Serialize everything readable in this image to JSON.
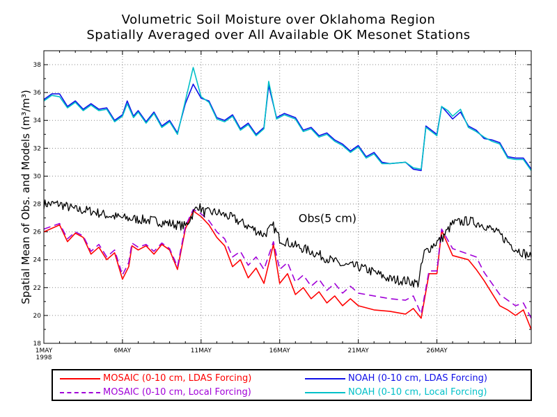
{
  "title": {
    "line1": "Volumetric Soil Moisture over Oklahoma Region",
    "line2": "Spatially Averaged over All Available OK Mesonet Stations"
  },
  "chart_data": {
    "type": "line",
    "ylabel": "Spatial Mean of Obs. and Models (m³/m³)",
    "ylim": [
      18,
      39
    ],
    "yticks": [
      18,
      20,
      22,
      24,
      26,
      28,
      30,
      32,
      34,
      36,
      38
    ],
    "xlim": [
      1,
      32
    ],
    "xticks": [
      {
        "day": 1,
        "label": "1MAY",
        "sublabel": "1998"
      },
      {
        "day": 6,
        "label": "6MAY"
      },
      {
        "day": 11,
        "label": "11MAY"
      },
      {
        "day": 16,
        "label": "16MAY"
      },
      {
        "day": 21,
        "label": "21MAY"
      },
      {
        "day": 26,
        "label": "26MAY"
      }
    ],
    "grid": true,
    "annotation": {
      "text": "Obs(5 cm)",
      "x": 17.2,
      "y": 26.7
    },
    "series": [
      {
        "name": "MOSAIC (0-10 cm, LDAS Forcing)",
        "color": "#ff0000",
        "dash": false,
        "noise": 0,
        "points": [
          [
            1,
            26.0
          ],
          [
            2,
            26.5
          ],
          [
            2.5,
            25.3
          ],
          [
            3,
            25.9
          ],
          [
            3.5,
            25.6
          ],
          [
            4,
            24.4
          ],
          [
            4.5,
            24.9
          ],
          [
            5,
            24.0
          ],
          [
            5.5,
            24.5
          ],
          [
            6,
            22.6
          ],
          [
            6.4,
            23.5
          ],
          [
            6.6,
            25.0
          ],
          [
            7,
            24.7
          ],
          [
            7.5,
            25.0
          ],
          [
            8,
            24.4
          ],
          [
            8.5,
            25.1
          ],
          [
            9,
            24.7
          ],
          [
            9.5,
            23.3
          ],
          [
            10,
            26.2
          ],
          [
            10.5,
            27.5
          ],
          [
            11,
            27.1
          ],
          [
            11.5,
            26.5
          ],
          [
            12,
            25.6
          ],
          [
            12.5,
            25.0
          ],
          [
            13,
            23.5
          ],
          [
            13.5,
            24.0
          ],
          [
            14,
            22.7
          ],
          [
            14.5,
            23.4
          ],
          [
            15,
            22.3
          ],
          [
            15.6,
            25.1
          ],
          [
            16,
            22.3
          ],
          [
            16.5,
            23.0
          ],
          [
            17,
            21.5
          ],
          [
            17.5,
            22.0
          ],
          [
            18,
            21.2
          ],
          [
            18.5,
            21.7
          ],
          [
            19,
            20.9
          ],
          [
            19.5,
            21.4
          ],
          [
            20,
            20.7
          ],
          [
            20.5,
            21.2
          ],
          [
            21,
            20.7
          ],
          [
            22,
            20.4
          ],
          [
            23,
            20.3
          ],
          [
            24,
            20.1
          ],
          [
            24.5,
            20.5
          ],
          [
            25,
            19.8
          ],
          [
            25.5,
            23.0
          ],
          [
            26,
            23.0
          ],
          [
            26.3,
            26.1
          ],
          [
            27,
            24.3
          ],
          [
            28,
            24.0
          ],
          [
            28.5,
            23.3
          ],
          [
            29,
            22.5
          ],
          [
            30,
            20.7
          ],
          [
            30.5,
            20.4
          ],
          [
            31,
            20.0
          ],
          [
            31.5,
            20.4
          ],
          [
            32,
            19.0
          ]
        ]
      },
      {
        "name": "MOSAIC (0-10 cm, Local Forcing)",
        "color": "#a000d8",
        "dash": true,
        "noise": 0,
        "points": [
          [
            1,
            26.2
          ],
          [
            2,
            26.6
          ],
          [
            2.5,
            25.5
          ],
          [
            3,
            26.0
          ],
          [
            3.5,
            25.7
          ],
          [
            4,
            24.6
          ],
          [
            4.5,
            25.1
          ],
          [
            5,
            24.2
          ],
          [
            5.5,
            24.7
          ],
          [
            6,
            22.9
          ],
          [
            6.4,
            23.8
          ],
          [
            6.6,
            25.2
          ],
          [
            7,
            24.9
          ],
          [
            7.5,
            25.1
          ],
          [
            8,
            24.6
          ],
          [
            8.5,
            25.2
          ],
          [
            9,
            24.8
          ],
          [
            9.5,
            23.5
          ],
          [
            10,
            26.4
          ],
          [
            10.5,
            27.6
          ],
          [
            11,
            27.3
          ],
          [
            11.5,
            26.8
          ],
          [
            12,
            26.0
          ],
          [
            12.5,
            25.5
          ],
          [
            13,
            24.2
          ],
          [
            13.5,
            24.6
          ],
          [
            14,
            23.6
          ],
          [
            14.5,
            24.2
          ],
          [
            15,
            23.3
          ],
          [
            15.6,
            25.3
          ],
          [
            16,
            23.3
          ],
          [
            16.5,
            23.8
          ],
          [
            17,
            22.4
          ],
          [
            17.5,
            22.9
          ],
          [
            18,
            22.1
          ],
          [
            18.5,
            22.6
          ],
          [
            19,
            21.8
          ],
          [
            19.5,
            22.3
          ],
          [
            20,
            21.6
          ],
          [
            20.5,
            22.1
          ],
          [
            21,
            21.6
          ],
          [
            22,
            21.4
          ],
          [
            23,
            21.2
          ],
          [
            24,
            21.1
          ],
          [
            24.5,
            21.4
          ],
          [
            25,
            20.1
          ],
          [
            25.5,
            23.2
          ],
          [
            26,
            23.2
          ],
          [
            26.3,
            26.2
          ],
          [
            27,
            24.8
          ],
          [
            28,
            24.4
          ],
          [
            28.5,
            24.2
          ],
          [
            29,
            23.1
          ],
          [
            30,
            21.5
          ],
          [
            30.5,
            21.1
          ],
          [
            31,
            20.7
          ],
          [
            31.5,
            20.9
          ],
          [
            32,
            19.8
          ]
        ]
      },
      {
        "name": "NOAH (0-10 cm, LDAS Forcing)",
        "color": "#1010e8",
        "dash": false,
        "noise": 0,
        "points": [
          [
            1,
            35.5
          ],
          [
            1.5,
            35.9
          ],
          [
            2,
            35.9
          ],
          [
            2.5,
            35.0
          ],
          [
            3,
            35.4
          ],
          [
            3.5,
            34.8
          ],
          [
            4,
            35.2
          ],
          [
            4.5,
            34.8
          ],
          [
            5,
            34.9
          ],
          [
            5.5,
            34.0
          ],
          [
            6,
            34.4
          ],
          [
            6.3,
            35.4
          ],
          [
            6.7,
            34.3
          ],
          [
            7,
            34.7
          ],
          [
            7.5,
            33.9
          ],
          [
            8,
            34.6
          ],
          [
            8.5,
            33.6
          ],
          [
            9,
            34.0
          ],
          [
            9.5,
            33.1
          ],
          [
            10,
            35.2
          ],
          [
            10.5,
            36.6
          ],
          [
            11,
            35.6
          ],
          [
            11.5,
            35.4
          ],
          [
            12,
            34.2
          ],
          [
            12.5,
            34.0
          ],
          [
            13,
            34.4
          ],
          [
            13.5,
            33.4
          ],
          [
            14,
            33.8
          ],
          [
            14.5,
            33.0
          ],
          [
            15,
            33.5
          ],
          [
            15.3,
            36.5
          ],
          [
            15.8,
            34.2
          ],
          [
            16.3,
            34.5
          ],
          [
            17,
            34.2
          ],
          [
            17.5,
            33.3
          ],
          [
            18,
            33.5
          ],
          [
            18.5,
            32.9
          ],
          [
            19,
            33.1
          ],
          [
            19.5,
            32.6
          ],
          [
            20,
            32.3
          ],
          [
            20.5,
            31.8
          ],
          [
            21,
            32.2
          ],
          [
            21.5,
            31.4
          ],
          [
            22,
            31.7
          ],
          [
            22.5,
            31.0
          ],
          [
            23,
            30.9
          ],
          [
            24,
            31.0
          ],
          [
            24.5,
            30.5
          ],
          [
            25,
            30.4
          ],
          [
            25.3,
            33.6
          ],
          [
            26,
            33.0
          ],
          [
            26.3,
            35.0
          ],
          [
            26.7,
            34.5
          ],
          [
            27,
            34.1
          ],
          [
            27.5,
            34.6
          ],
          [
            28,
            33.6
          ],
          [
            28.5,
            33.3
          ],
          [
            29,
            32.7
          ],
          [
            29.5,
            32.6
          ],
          [
            30,
            32.4
          ],
          [
            30.5,
            31.4
          ],
          [
            31,
            31.3
          ],
          [
            31.5,
            31.3
          ],
          [
            32,
            30.5
          ]
        ]
      },
      {
        "name": "NOAH (0-10 cm, Local Forcing)",
        "color": "#00c0c8",
        "dash": false,
        "noise": 0,
        "points": [
          [
            1,
            35.4
          ],
          [
            1.5,
            35.8
          ],
          [
            2,
            35.7
          ],
          [
            2.5,
            34.9
          ],
          [
            3,
            35.3
          ],
          [
            3.5,
            34.7
          ],
          [
            4,
            35.1
          ],
          [
            4.5,
            34.7
          ],
          [
            5,
            34.8
          ],
          [
            5.5,
            33.9
          ],
          [
            6,
            34.3
          ],
          [
            6.3,
            35.2
          ],
          [
            6.7,
            34.2
          ],
          [
            7,
            34.6
          ],
          [
            7.5,
            33.8
          ],
          [
            8,
            34.5
          ],
          [
            8.5,
            33.5
          ],
          [
            9,
            33.9
          ],
          [
            9.5,
            33.0
          ],
          [
            10,
            35.4
          ],
          [
            10.5,
            37.8
          ],
          [
            11,
            35.7
          ],
          [
            11.5,
            35.3
          ],
          [
            12,
            34.1
          ],
          [
            12.5,
            33.9
          ],
          [
            13,
            34.3
          ],
          [
            13.5,
            33.3
          ],
          [
            14,
            33.7
          ],
          [
            14.5,
            32.9
          ],
          [
            15,
            33.4
          ],
          [
            15.3,
            36.8
          ],
          [
            15.8,
            34.1
          ],
          [
            16.3,
            34.4
          ],
          [
            17,
            34.1
          ],
          [
            17.5,
            33.2
          ],
          [
            18,
            33.4
          ],
          [
            18.5,
            32.8
          ],
          [
            19,
            33.0
          ],
          [
            19.5,
            32.5
          ],
          [
            20,
            32.2
          ],
          [
            20.5,
            31.7
          ],
          [
            21,
            32.1
          ],
          [
            21.5,
            31.3
          ],
          [
            22,
            31.6
          ],
          [
            22.5,
            30.9
          ],
          [
            23,
            30.9
          ],
          [
            24,
            31.0
          ],
          [
            24.5,
            30.6
          ],
          [
            25,
            30.5
          ],
          [
            25.3,
            33.5
          ],
          [
            26,
            32.9
          ],
          [
            26.3,
            35.0
          ],
          [
            26.7,
            34.7
          ],
          [
            27,
            34.3
          ],
          [
            27.5,
            34.8
          ],
          [
            28,
            33.5
          ],
          [
            28.5,
            33.2
          ],
          [
            29,
            32.8
          ],
          [
            29.5,
            32.5
          ],
          [
            30,
            32.3
          ],
          [
            30.5,
            31.3
          ],
          [
            31,
            31.2
          ],
          [
            31.5,
            31.2
          ],
          [
            32,
            30.4
          ]
        ]
      },
      {
        "name": "Obs(5 cm)",
        "color": "#000000",
        "dash": false,
        "noise": 0.35,
        "points": [
          [
            1,
            28.0
          ],
          [
            2,
            28.0
          ],
          [
            3,
            27.6
          ],
          [
            4,
            27.5
          ],
          [
            5,
            27.2
          ],
          [
            6,
            27.0
          ],
          [
            7,
            26.9
          ],
          [
            8,
            26.8
          ],
          [
            9,
            26.6
          ],
          [
            10,
            26.4
          ],
          [
            10.8,
            27.9
          ],
          [
            11.2,
            27.4
          ],
          [
            12,
            27.4
          ],
          [
            13,
            27.0
          ],
          [
            14,
            26.4
          ],
          [
            15,
            25.8
          ],
          [
            15.6,
            26.4
          ],
          [
            16,
            25.5
          ],
          [
            17,
            25.0
          ],
          [
            18,
            24.6
          ],
          [
            19,
            24.1
          ],
          [
            20,
            23.6
          ],
          [
            21,
            23.5
          ],
          [
            22,
            23.1
          ],
          [
            23,
            22.6
          ],
          [
            24,
            22.5
          ],
          [
            24.8,
            22.3
          ],
          [
            25.2,
            24.5
          ],
          [
            25.8,
            25.1
          ],
          [
            26.3,
            25.5
          ],
          [
            27,
            26.6
          ],
          [
            28,
            26.8
          ],
          [
            29,
            26.5
          ],
          [
            30,
            25.8
          ],
          [
            31,
            24.8
          ],
          [
            31.5,
            24.5
          ],
          [
            32,
            24.2
          ]
        ]
      }
    ]
  }
}
